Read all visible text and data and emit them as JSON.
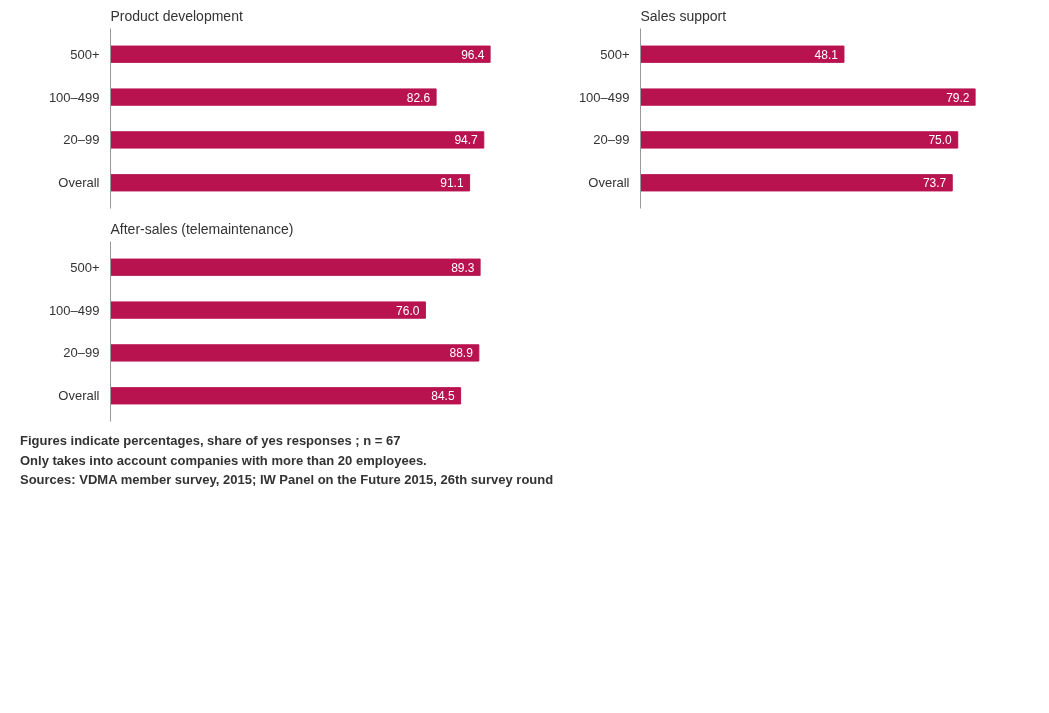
{
  "chart_data": [
    {
      "type": "bar",
      "orientation": "horizontal",
      "title": "Product development",
      "categories": [
        "500+",
        "100–499",
        "20–99",
        "Overall"
      ],
      "values": [
        96.4,
        82.6,
        94.7,
        91.1
      ],
      "color": "#b8124f",
      "data_labels": true
    },
    {
      "type": "bar",
      "orientation": "horizontal",
      "title": "Sales support",
      "categories": [
        "500+",
        "100–499",
        "20–99",
        "Overall"
      ],
      "values": [
        48.1,
        79.2,
        75.0,
        73.7
      ],
      "value_labels": [
        "48.1",
        "79.2",
        "75.0",
        "73.7"
      ],
      "color": "#b8124f"
    },
    {
      "type": "bar",
      "orientation": "horizontal",
      "title": "After-sales (telemaintenance)",
      "categories": [
        "500+",
        "100–499",
        "20–99",
        "Overall"
      ],
      "values": [
        89.3,
        76.0,
        88.9,
        84.5
      ],
      "value_labels": [
        "89.3",
        "76.0",
        "88.9",
        "84.5"
      ],
      "color": "#b8124f",
      "annotations": [
        "Figures indicate percentages, share of yes responses ; n = 67",
        "Only takes into account companies with more than 20 employees.",
        "Sources: VDMA member survey, 2015; IW Panel on the Future 2015, 26th survey round"
      ]
    }
  ]
}
